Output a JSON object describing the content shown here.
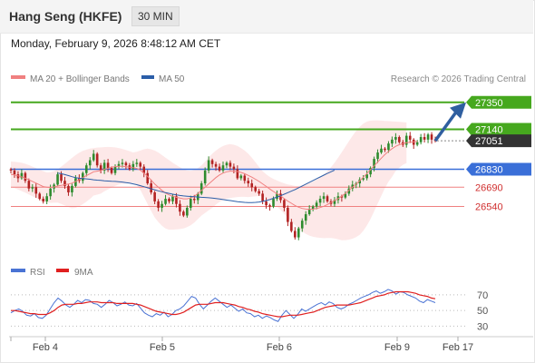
{
  "header": {
    "title": "Hang Seng (HKFE)",
    "timeframe": "30 MIN",
    "datetime": "Monday, February 9, 2026 8:48:12 AM CET"
  },
  "legend": [
    {
      "label": "MA 20 + Bollinger Bands",
      "color": "#f08080"
    },
    {
      "label": "MA 50",
      "color": "#2b5ea8"
    }
  ],
  "credit": "Research © 2026 Trading Central",
  "rsi_legend": [
    {
      "label": "RSI",
      "color": "#4a73d4"
    },
    {
      "label": "9MA",
      "color": "#e02020"
    }
  ],
  "colors": {
    "up_candle": "#2e8b2e",
    "down_candle": "#b22222",
    "resistance": "#46a81e",
    "pivot": "#3a6fd8",
    "support": "#f08080",
    "arrow": "#2f5fa0",
    "current_price_label": "#333333"
  },
  "chart_data": [
    {
      "type": "candlestick",
      "title": "Hang Seng (HKFE)",
      "x_labels": [
        "Feb 4",
        "Feb 5",
        "Feb 6",
        "Feb 9",
        "Feb 17"
      ],
      "ylim": [
        26170,
        27440
      ],
      "levels": [
        {
          "value": 27350,
          "kind": "resistance"
        },
        {
          "value": 27140,
          "kind": "resistance"
        },
        {
          "value": 27051,
          "kind": "last"
        },
        {
          "value": 26830,
          "kind": "pivot"
        },
        {
          "value": 26690,
          "kind": "support"
        },
        {
          "value": 26540,
          "kind": "support"
        }
      ],
      "close": [
        26820,
        26790,
        26760,
        26800,
        26740,
        26680,
        26690,
        26640,
        26600,
        26580,
        26620,
        26680,
        26710,
        26790,
        26740,
        26700,
        26650,
        26700,
        26760,
        26740,
        26800,
        26860,
        26900,
        26950,
        26860,
        26820,
        26880,
        26840,
        26800,
        26850,
        26870,
        26880,
        26860,
        26830,
        26870,
        26880,
        26850,
        26800,
        26720,
        26650,
        26580,
        26530,
        26560,
        26600,
        26580,
        26620,
        26560,
        26500,
        26470,
        26530,
        26600,
        26590,
        26640,
        26720,
        26820,
        26900,
        26870,
        26850,
        26820,
        26860,
        26880,
        26850,
        26830,
        26760,
        26780,
        26740,
        26720,
        26690,
        26660,
        26640,
        26580,
        26550,
        26540,
        26600,
        26640,
        26590,
        26530,
        26420,
        26350,
        26300,
        26370,
        26430,
        26480,
        26520,
        26540,
        26570,
        26600,
        26620,
        26580,
        26560,
        26590,
        26620,
        26610,
        26640,
        26680,
        26710,
        26720,
        26750,
        26760,
        26790,
        26840,
        26910,
        26960,
        26990,
        26980,
        27030,
        27060,
        27080,
        27040,
        27020,
        27090,
        27060,
        27020,
        27040,
        27080,
        27060,
        27100,
        27060,
        27051
      ],
      "ma20": [
        26790,
        26785,
        26778,
        26770,
        26760,
        26748,
        26735,
        26722,
        26708,
        26695,
        26690,
        26688,
        26692,
        26700,
        26705,
        26710,
        26715,
        26722,
        26735,
        26750,
        26765,
        26780,
        26795,
        26810,
        26815,
        26820,
        26830,
        26838,
        26845,
        26850,
        26853,
        26852,
        26850,
        26846,
        26842,
        26836,
        26822,
        26800,
        26775,
        26745,
        26715,
        26690,
        26665,
        26645,
        26630,
        26620,
        26612,
        26605,
        26600,
        26600,
        26606,
        26620,
        26640,
        26665,
        26690,
        26715,
        26740,
        26765,
        26785,
        26800,
        26810,
        26815,
        26815,
        26812,
        26805,
        26795,
        26782,
        26768,
        26752,
        26735,
        26716,
        26696,
        26676,
        26657,
        26640,
        26622,
        26602,
        26582,
        26565,
        26548,
        26535,
        26525,
        26520,
        26518,
        26520,
        26525,
        26532,
        26542,
        26555,
        26570,
        26586,
        26602,
        26620,
        26642,
        26665,
        26690,
        26715,
        26740,
        26768,
        26796,
        26826,
        26856,
        26886,
        26916,
        26944,
        26968,
        26990,
        27008,
        27020,
        27030,
        27036,
        27040,
        27043,
        27046
      ],
      "bb_upper": [
        26890,
        26888,
        26884,
        26880,
        26872,
        26862,
        26850,
        26838,
        26826,
        26815,
        26805,
        26808,
        26815,
        26830,
        26850,
        26872,
        26895,
        26918,
        26940,
        26958,
        26972,
        26982,
        26990,
        26995,
        26998,
        27000,
        27002,
        27003,
        27002,
        27000,
        26995,
        26988,
        26980,
        26970,
        26960,
        26965,
        26975,
        26985,
        26990,
        26985,
        26975,
        26960,
        26940,
        26920,
        26900,
        26880,
        26862,
        26845,
        26830,
        26820,
        26818,
        26825,
        26838,
        26860,
        26890,
        26920,
        26950,
        26975,
        26995,
        27010,
        27020,
        27025,
        27020,
        27010,
        26995,
        26975,
        26950,
        26920,
        26885,
        26848,
        26815,
        26790,
        26770,
        26755,
        26742,
        26730,
        26720,
        26712,
        26706,
        26700,
        26700,
        26704,
        26712,
        26722,
        26735,
        26750,
        26768,
        26790,
        26815,
        26845,
        26880,
        26920,
        26962,
        27005,
        27048,
        27090,
        27128,
        27160,
        27185,
        27200,
        27208,
        27210,
        27210,
        27208,
        27206,
        27204,
        27202,
        27200,
        27198,
        27196,
        27194
      ],
      "bb_lower": [
        26690,
        26682,
        26672,
        26660,
        26648,
        26634,
        26620,
        26606,
        26590,
        26575,
        26575,
        26568,
        26569,
        26570,
        26560,
        26548,
        26535,
        26526,
        26530,
        26542,
        26558,
        26578,
        26600,
        26625,
        26632,
        26640,
        26658,
        26673,
        26688,
        26700,
        26711,
        26716,
        26720,
        26722,
        26724,
        26707,
        26669,
        26615,
        26560,
        26505,
        26455,
        26420,
        26390,
        26370,
        26360,
        26360,
        26362,
        26365,
        26370,
        26380,
        26394,
        26415,
        26442,
        26470,
        26490,
        26510,
        26530,
        26555,
        26575,
        26590,
        26600,
        26605,
        26610,
        26614,
        26615,
        26615,
        26614,
        26616,
        26619,
        26622,
        26617,
        26602,
        26582,
        26559,
        26538,
        26514,
        26484,
        26452,
        26424,
        26396,
        26370,
        26346,
        26328,
        26314,
        26305,
        26300,
        26296,
        26294,
        26295,
        26295,
        26292,
        26284,
        26278,
        26279,
        26282,
        26290,
        26302,
        26320,
        26351,
        26392,
        26444,
        26502,
        26562,
        26624,
        26682,
        26732,
        26772,
        26816,
        26842,
        26864,
        26878,
        26886,
        26892,
        26898
      ],
      "ma50_from_index": 13,
      "ma50": [
        26800,
        26795,
        26788,
        26780,
        26772,
        26765,
        26760,
        26758,
        26755,
        26752,
        26748,
        26745,
        26743,
        26740,
        26738,
        26736,
        26735,
        26733,
        26730,
        26726,
        26722,
        26716,
        26710,
        26702,
        26694,
        26686,
        26678,
        26670,
        26662,
        26655,
        26648,
        26642,
        26636,
        26630,
        26626,
        26622,
        26620,
        26618,
        26616,
        26614,
        26612,
        26610,
        26608,
        26605,
        26602,
        26598,
        26594,
        26590,
        26586,
        26582,
        26578,
        26575,
        26572,
        26570,
        26570,
        26572,
        26575,
        26580,
        26586,
        26594,
        26604,
        26614,
        26624,
        26636,
        26648,
        26660,
        26672,
        26686,
        26700,
        26714,
        26728,
        26742,
        26756,
        26770,
        26784,
        26797,
        26810,
        26822
      ],
      "rsi": [
        47,
        50,
        52,
        49,
        44,
        43,
        46,
        41,
        40,
        44,
        52,
        60,
        66,
        62,
        57,
        54,
        58,
        63,
        60,
        64,
        63,
        59,
        58,
        54,
        58,
        63,
        60,
        56,
        58,
        61,
        57,
        56,
        59,
        53,
        47,
        44,
        42,
        46,
        44,
        48,
        42,
        45,
        50,
        52,
        56,
        62,
        68,
        66,
        58,
        52,
        57,
        62,
        66,
        62,
        58,
        54,
        57,
        53,
        49,
        52,
        47,
        46,
        42,
        44,
        40,
        43,
        41,
        38,
        36,
        44,
        50,
        45,
        40,
        45,
        52,
        49,
        52,
        55,
        58,
        60,
        57,
        61,
        59,
        54,
        52,
        54,
        58,
        60,
        63,
        66,
        68,
        70,
        73,
        75,
        72,
        74,
        77,
        75,
        71,
        74,
        73,
        70,
        68,
        66,
        62,
        60,
        64,
        62,
        60
      ],
      "rsi_ma": [
        50,
        50,
        49,
        48,
        47,
        46,
        46,
        45,
        45,
        45,
        47,
        50,
        54,
        57,
        58,
        58,
        58,
        59,
        59,
        60,
        61,
        61,
        61,
        60,
        60,
        60,
        60,
        59,
        59,
        59,
        59,
        59,
        58,
        57,
        55,
        53,
        51,
        49,
        48,
        47,
        46,
        45,
        45,
        46,
        48,
        51,
        54,
        57,
        58,
        58,
        58,
        59,
        60,
        60,
        60,
        59,
        58,
        57,
        55,
        54,
        52,
        51,
        49,
        48,
        46,
        45,
        44,
        43,
        42,
        42,
        43,
        44,
        44,
        44,
        45,
        46,
        47,
        48,
        50,
        52,
        54,
        55,
        56,
        57,
        57,
        57,
        57,
        58,
        59,
        60,
        62,
        64,
        66,
        68,
        69,
        70,
        72,
        73,
        74,
        74,
        74,
        74,
        73,
        72,
        70,
        69,
        68,
        66,
        65
      ],
      "rsi_levels": [
        70,
        50,
        30
      ],
      "rsi_ylim": [
        20,
        85
      ]
    }
  ]
}
